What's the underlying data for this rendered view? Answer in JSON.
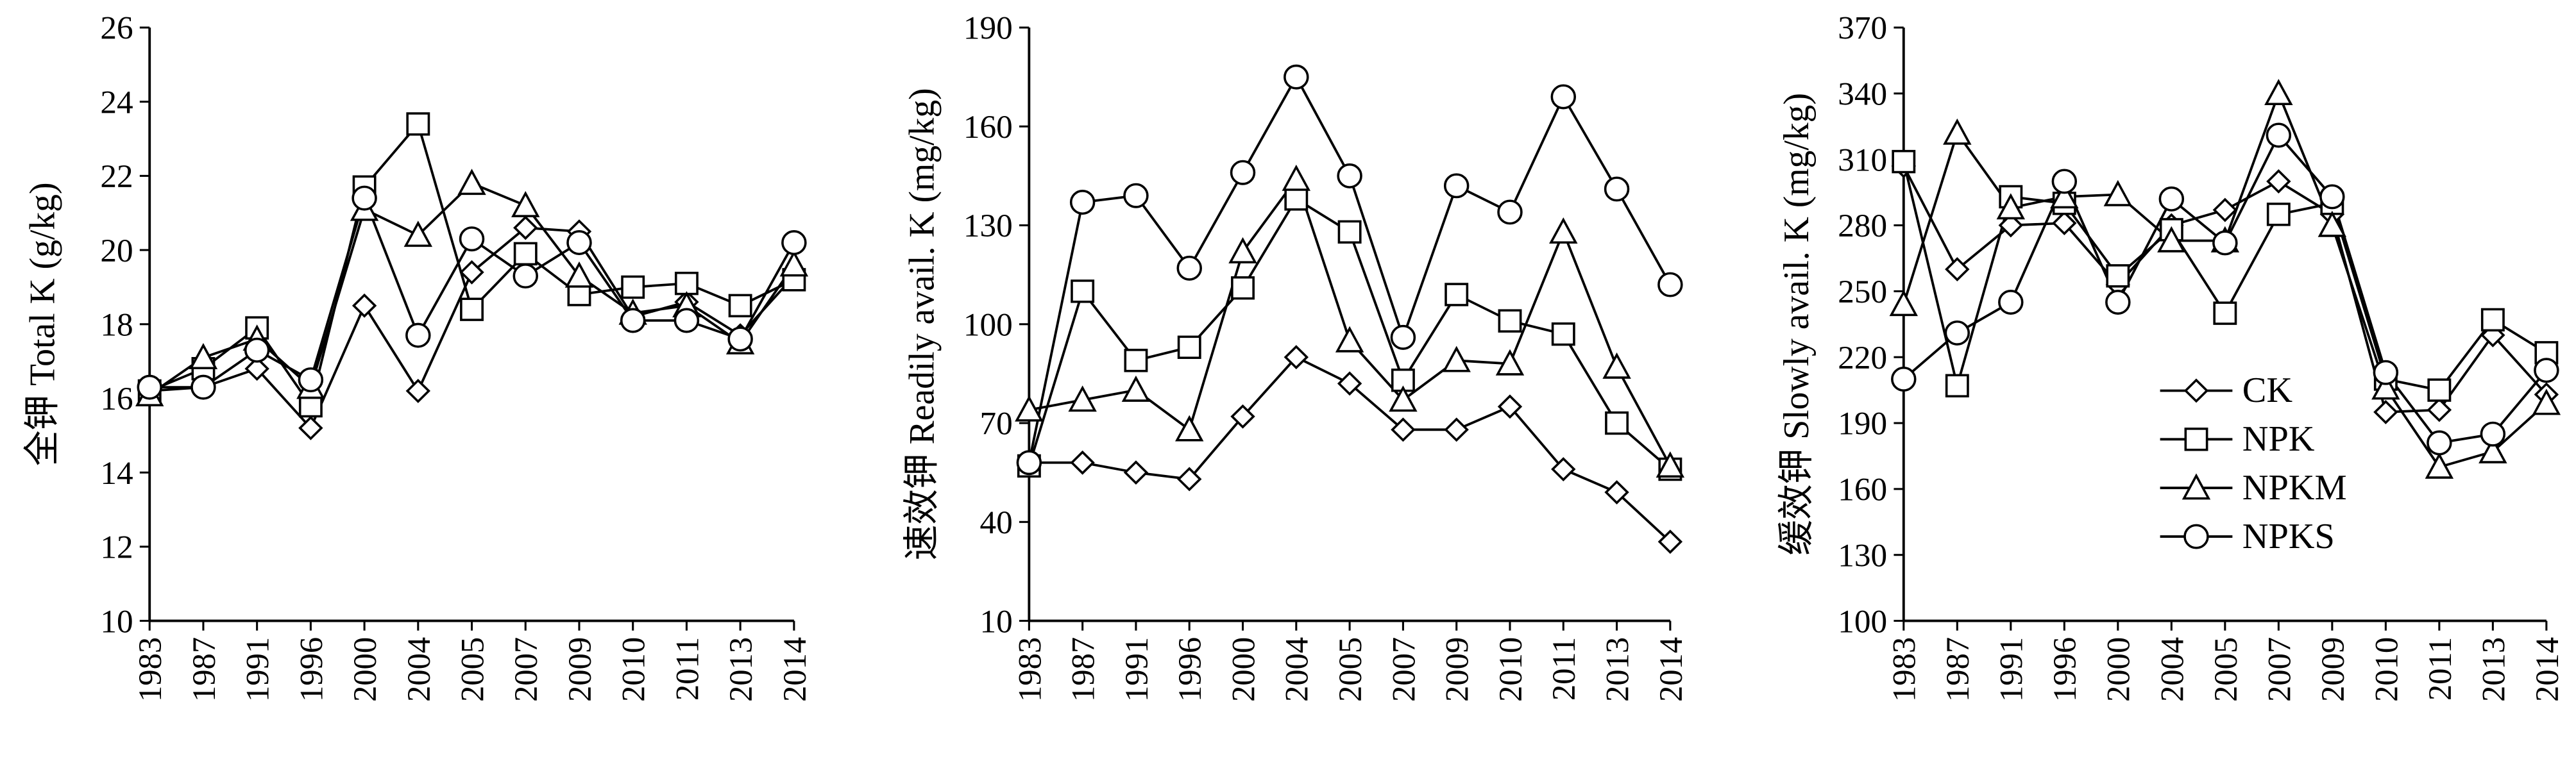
{
  "chart_data": [
    {
      "type": "line",
      "ylabel": "全钾 Total K (g/kg)",
      "categories": [
        "1983",
        "1987",
        "1991",
        "1996",
        "2000",
        "2004",
        "2005",
        "2007",
        "2009",
        "2010",
        "2011",
        "2013",
        "2014"
      ],
      "ylim": [
        10,
        26
      ],
      "yticks": [
        10,
        12,
        14,
        16,
        18,
        20,
        22,
        24,
        26
      ],
      "legend": false,
      "series": [
        {
          "name": "CK",
          "color": "#000000",
          "marker": "diamond",
          "values": [
            16.2,
            16.3,
            16.8,
            15.2,
            18.5,
            16.2,
            19.4,
            20.6,
            20.5,
            18.2,
            18.6,
            17.7,
            19.3
          ]
        },
        {
          "name": "NPK",
          "color": "#000000",
          "marker": "square",
          "values": [
            16.2,
            16.8,
            17.9,
            15.8,
            21.7,
            23.4,
            18.4,
            19.9,
            18.8,
            19.0,
            19.1,
            18.5,
            19.2
          ]
        },
        {
          "name": "NPKM",
          "color": "#000000",
          "marker": "triangle",
          "values": [
            16.1,
            17.1,
            17.6,
            16.3,
            21.1,
            20.4,
            21.8,
            21.2,
            19.3,
            18.3,
            18.5,
            17.5,
            19.6
          ]
        },
        {
          "name": "NPKS",
          "color": "#000000",
          "marker": "circle",
          "values": [
            16.3,
            16.3,
            17.3,
            16.5,
            21.4,
            17.7,
            20.3,
            19.3,
            20.2,
            18.1,
            18.1,
            17.6,
            20.2
          ]
        }
      ]
    },
    {
      "type": "line",
      "ylabel": "速效钾 Readily avail. K (mg/kg)",
      "categories": [
        "1983",
        "1987",
        "1991",
        "1996",
        "2000",
        "2004",
        "2005",
        "2007",
        "2009",
        "2010",
        "2011",
        "2013",
        "2014"
      ],
      "ylim": [
        10,
        190
      ],
      "yticks": [
        10,
        40,
        70,
        100,
        130,
        160,
        190
      ],
      "legend": false,
      "series": [
        {
          "name": "CK",
          "color": "#000000",
          "marker": "diamond",
          "values": [
            58,
            58,
            55,
            53,
            72,
            90,
            82,
            68,
            68,
            75,
            56,
            49,
            34
          ]
        },
        {
          "name": "NPK",
          "color": "#000000",
          "marker": "square",
          "values": [
            57,
            110,
            89,
            93,
            111,
            138,
            128,
            83,
            109,
            101,
            97,
            70,
            56
          ]
        },
        {
          "name": "NPKM",
          "color": "#000000",
          "marker": "triangle",
          "values": [
            74,
            77,
            80,
            68,
            122,
            144,
            95,
            77,
            89,
            88,
            128,
            87,
            57
          ]
        },
        {
          "name": "NPKS",
          "color": "#000000",
          "marker": "circle",
          "values": [
            58,
            137,
            139,
            117,
            146,
            175,
            145,
            96,
            142,
            134,
            169,
            141,
            112
          ]
        }
      ]
    },
    {
      "type": "line",
      "ylabel": "缓效钾 Slowly avail. K (mg/kg)",
      "categories": [
        "1983",
        "1987",
        "1991",
        "1996",
        "2000",
        "2004",
        "2005",
        "2007",
        "2009",
        "2010",
        "2011",
        "2013",
        "2014"
      ],
      "ylim": [
        100,
        370
      ],
      "yticks": [
        100,
        130,
        160,
        190,
        220,
        250,
        280,
        310,
        340,
        370
      ],
      "legend": "right",
      "series": [
        {
          "name": "CK",
          "color": "#000000",
          "marker": "diamond",
          "values": [
            307,
            260,
            280,
            281,
            253,
            280,
            287,
            300,
            285,
            195,
            196,
            230,
            203
          ]
        },
        {
          "name": "NPK",
          "color": "#000000",
          "marker": "square",
          "values": [
            309,
            207,
            293,
            290,
            257,
            278,
            240,
            285,
            290,
            210,
            205,
            237,
            222
          ]
        },
        {
          "name": "NPKM",
          "color": "#000000",
          "marker": "triangle",
          "values": [
            244,
            322,
            288,
            293,
            294,
            273,
            273,
            340,
            280,
            206,
            170,
            177,
            199
          ]
        },
        {
          "name": "NPKS",
          "color": "#000000",
          "marker": "circle",
          "values": [
            210,
            231,
            245,
            300,
            245,
            292,
            272,
            321,
            293,
            213,
            181,
            185,
            214
          ]
        }
      ]
    }
  ]
}
